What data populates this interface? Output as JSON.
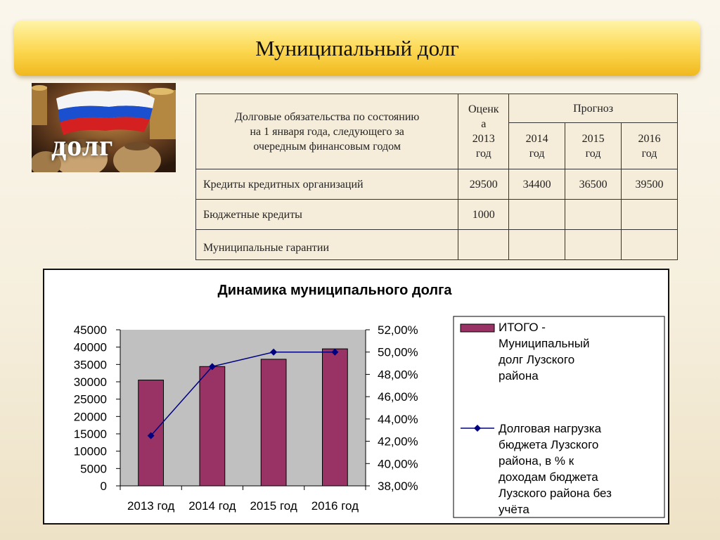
{
  "page": {
    "title": "Муниципальный долг"
  },
  "image": {
    "caption": "долг"
  },
  "table": {
    "header_label": [
      "Долговые обязательства по состоянию",
      "на 1 января года, следующего за",
      "очередным финансовым годом"
    ],
    "estimate_label": [
      "Оценк",
      "а",
      "2013",
      "год"
    ],
    "forecast_label": "Прогноз",
    "forecast_years": [
      [
        "2014",
        "год"
      ],
      [
        "2015",
        "год"
      ],
      [
        "2016",
        "год"
      ]
    ],
    "rows": [
      {
        "label": "Кредиты кредитных организаций",
        "values": [
          "29500",
          "34400",
          "36500",
          "39500"
        ]
      },
      {
        "label": "Бюджетные кредиты",
        "values": [
          "1000",
          "",
          "",
          ""
        ]
      },
      {
        "label": "Муниципальные гарантии",
        "values": [
          "",
          "",
          "",
          ""
        ]
      }
    ]
  },
  "chart_data": {
    "type": "bar",
    "title": "Динамика муниципального долга",
    "categories": [
      "2013 год",
      "2014 год",
      "2015 год",
      "2016 год"
    ],
    "series": [
      {
        "name": [
          "ИТОГО -",
          "Муниципальный",
          "долг Лузского",
          "района"
        ],
        "type": "bar",
        "axis": "left",
        "values": [
          30500,
          34400,
          36500,
          39500
        ],
        "color": "#993366"
      },
      {
        "name": [
          "Долговая нагрузка",
          "бюджета Лузского",
          "района, в % к",
          "доходам бюджета",
          "Лузского района без",
          "учёта"
        ],
        "type": "line",
        "axis": "right",
        "values": [
          42.5,
          48.7,
          50.0,
          50.0
        ],
        "color": "#000080"
      }
    ],
    "y_left": {
      "min": 0,
      "max": 45000,
      "step": 5000,
      "ticks": [
        "0",
        "5000",
        "10000",
        "15000",
        "20000",
        "25000",
        "30000",
        "35000",
        "40000",
        "45000"
      ]
    },
    "y_right": {
      "min": 38,
      "max": 52,
      "step": 2,
      "ticks": [
        "38,00%",
        "40,00%",
        "42,00%",
        "44,00%",
        "46,00%",
        "48,00%",
        "50,00%",
        "52,00%"
      ]
    },
    "plot_background": "#c0c0c0",
    "grid": false,
    "legend_position": "right"
  }
}
